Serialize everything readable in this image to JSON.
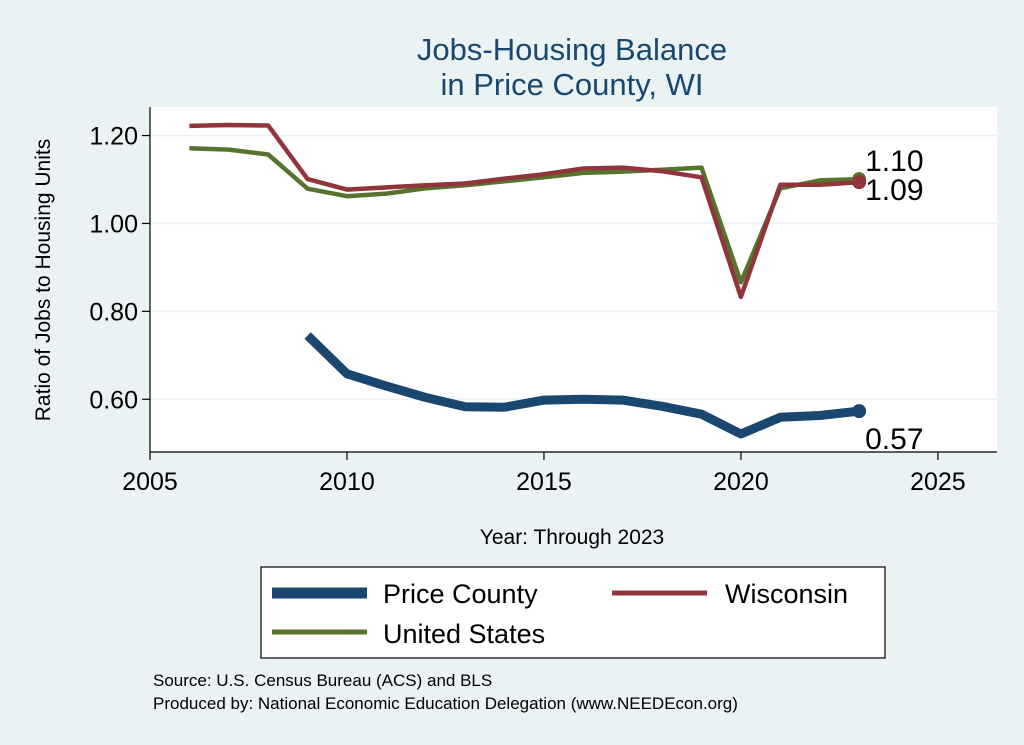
{
  "chart_data": {
    "type": "line",
    "title": [
      "Jobs-Housing Balance",
      "in Price County, WI"
    ],
    "xlabel": "Year: Through 2023",
    "ylabel": "Ratio of Jobs to Housing Units",
    "xlim": [
      2005,
      2026.5
    ],
    "ylim": [
      0.48,
      1.265
    ],
    "xticks": [
      2005,
      2010,
      2015,
      2020,
      2025
    ],
    "yticks": [
      0.6,
      0.8,
      1.0,
      1.2
    ],
    "ytick_labels": [
      "0.60",
      "0.80",
      "1.00",
      "1.20"
    ],
    "grid": true,
    "legend_position": "bottom",
    "series": [
      {
        "name": "Price County",
        "color": "#1A476F",
        "x": [
          2009,
          2010,
          2011,
          2012,
          2013,
          2014,
          2015,
          2016,
          2017,
          2018,
          2019,
          2020,
          2021,
          2022,
          2023
        ],
        "values": [
          0.745,
          0.658,
          0.63,
          0.604,
          0.583,
          0.582,
          0.598,
          0.6,
          0.598,
          0.584,
          0.566,
          0.521,
          0.559,
          0.563,
          0.573
        ],
        "end_label": "0.57"
      },
      {
        "name": "Wisconsin",
        "color": "#90353B",
        "x": [
          2006,
          2007,
          2008,
          2009,
          2010,
          2011,
          2012,
          2013,
          2014,
          2015,
          2016,
          2017,
          2018,
          2019,
          2020,
          2021,
          2022,
          2023
        ],
        "values": [
          1.222,
          1.224,
          1.223,
          1.101,
          1.077,
          1.082,
          1.087,
          1.091,
          1.102,
          1.112,
          1.125,
          1.127,
          1.119,
          1.105,
          0.833,
          1.088,
          1.088,
          1.094
        ],
        "end_label": "1.09"
      },
      {
        "name": "United States",
        "color": "#55752F",
        "x": [
          2006,
          2007,
          2008,
          2009,
          2010,
          2011,
          2012,
          2013,
          2014,
          2015,
          2016,
          2017,
          2018,
          2019,
          2020,
          2021,
          2022,
          2023
        ],
        "values": [
          1.171,
          1.168,
          1.157,
          1.079,
          1.062,
          1.068,
          1.08,
          1.087,
          1.096,
          1.105,
          1.115,
          1.118,
          1.122,
          1.127,
          0.866,
          1.08,
          1.098,
          1.101
        ],
        "end_label": "1.10"
      }
    ]
  },
  "notes": [
    "Source: U.S. Census Bureau (ACS) and BLS",
    "Produced by: National Economic Education Delegation (www.NEEDEcon.org)"
  ]
}
